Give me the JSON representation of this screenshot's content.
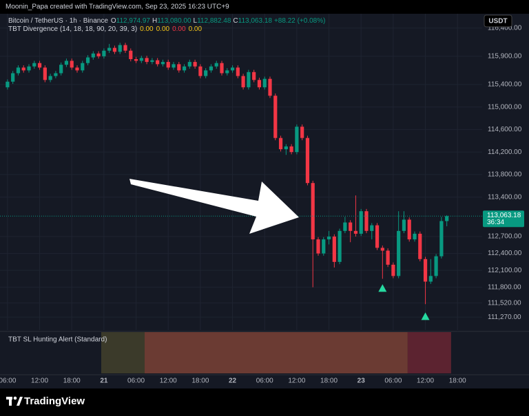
{
  "chart_data": {
    "type": "candlestick",
    "credit": "Moonin_Papa created with TradingView.com, Sep 23, 2025 16:23 UTC+9",
    "symbol": "Bitcoin / TetherUS · 1h · Binance",
    "ohlc_labels": [
      {
        "key": "O",
        "value": "112,974.97"
      },
      {
        "key": "H",
        "value": "113,080.00"
      },
      {
        "key": "L",
        "value": "112,882.48"
      },
      {
        "key": "C",
        "value": "113,063.18"
      }
    ],
    "change": "+88.22 (+0.08%)",
    "indicator": {
      "name": "TBT Divergence (14, 18, 18, 90, 20, 39, 3)",
      "values": [
        {
          "text": "0.00",
          "color": "#f5c518"
        },
        {
          "text": "0.00",
          "color": "#f5c518"
        },
        {
          "text": "0.00",
          "color": "#f23645"
        },
        {
          "text": "0.00",
          "color": "#f5c518"
        }
      ]
    },
    "currency": "USDT",
    "last_price_label": "113,063.18",
    "countdown": "36:34",
    "up_color": "#089981",
    "down_color": "#f23645",
    "x": [
      6,
      7,
      8,
      9,
      10,
      11,
      12,
      13,
      14,
      15,
      16,
      17,
      18,
      19,
      20,
      21,
      22,
      23,
      24,
      25,
      26,
      27,
      28,
      29,
      30,
      31,
      32,
      33,
      34,
      35,
      36,
      37,
      38,
      39,
      40,
      41,
      42,
      43,
      44,
      45,
      46,
      47,
      48,
      49,
      50,
      51,
      52,
      53,
      54,
      55,
      56,
      57,
      58,
      59,
      60,
      61,
      62,
      63,
      64,
      65,
      66,
      67,
      68,
      69,
      70,
      71,
      72,
      73,
      74,
      75,
      76,
      77,
      78,
      79,
      80,
      81,
      82,
      83,
      84,
      85,
      86,
      87,
      88
    ],
    "open": [
      115350,
      115450,
      115600,
      115700,
      115650,
      115720,
      115780,
      115700,
      115480,
      115550,
      115600,
      115750,
      115820,
      115700,
      115650,
      115780,
      115880,
      115950,
      115900,
      116000,
      116050,
      115980,
      116100,
      116000,
      115850,
      115820,
      115870,
      115800,
      115830,
      115760,
      115800,
      115700,
      115760,
      115650,
      115720,
      115800,
      115720,
      115550,
      115650,
      115720,
      115780,
      115600,
      115650,
      115700,
      115550,
      115350,
      115620,
      115480,
      115350,
      115500,
      115200,
      114450,
      114250,
      114300,
      114200,
      114650,
      114450,
      113650,
      112650,
      112400,
      112650,
      112700,
      112250,
      112800,
      112950,
      112800,
      112750,
      113150,
      112800,
      112900,
      112500,
      112450,
      112200,
      112000,
      112800,
      113000,
      112650,
      112750,
      112300,
      111900,
      112000,
      112350,
      112974.97
    ],
    "high": [
      115490,
      115640,
      115740,
      115740,
      115760,
      115820,
      115820,
      115740,
      115590,
      115640,
      115790,
      115860,
      115860,
      115740,
      115820,
      115920,
      115990,
      115990,
      116040,
      116120,
      116090,
      116140,
      116140,
      116040,
      115890,
      115910,
      115910,
      115870,
      115870,
      115840,
      115840,
      115800,
      115800,
      115760,
      115840,
      115840,
      115760,
      115690,
      115760,
      115820,
      115820,
      115690,
      115740,
      115740,
      115590,
      115660,
      115660,
      115520,
      115540,
      115540,
      115240,
      114490,
      114340,
      114340,
      114690,
      114690,
      114490,
      113690,
      112690,
      112690,
      112800,
      112740,
      112840,
      113050,
      112990,
      113430,
      113190,
      113190,
      112940,
      112940,
      112540,
      112490,
      112240,
      113150,
      113150,
      113040,
      112790,
      112790,
      112340,
      112300,
      112390,
      113050,
      113080
    ],
    "low": [
      115310,
      115410,
      115560,
      115610,
      115610,
      115680,
      115660,
      115440,
      115440,
      115510,
      115560,
      115710,
      115660,
      115610,
      115610,
      115740,
      115840,
      115860,
      115860,
      115960,
      115940,
      115940,
      115960,
      115810,
      115780,
      115780,
      115760,
      115760,
      115720,
      115720,
      115660,
      115660,
      115610,
      115610,
      115680,
      115680,
      115510,
      115510,
      115610,
      115680,
      115560,
      115560,
      115610,
      115510,
      115310,
      115310,
      115440,
      115310,
      115310,
      115160,
      114410,
      114210,
      114150,
      114160,
      114160,
      114410,
      113610,
      111800,
      112360,
      112360,
      112560,
      112150,
      112210,
      112760,
      112600,
      112700,
      112710,
      112760,
      112650,
      112460,
      111950,
      112160,
      111960,
      111960,
      112760,
      112610,
      112610,
      112260,
      111500,
      111860,
      111960,
      112310,
      112882.48
    ],
    "close": [
      115450,
      115600,
      115700,
      115650,
      115720,
      115780,
      115700,
      115480,
      115550,
      115600,
      115750,
      115820,
      115700,
      115650,
      115780,
      115880,
      115950,
      115900,
      116000,
      116050,
      115980,
      116100,
      116000,
      115850,
      115820,
      115870,
      115800,
      115830,
      115760,
      115800,
      115700,
      115760,
      115650,
      115720,
      115800,
      115720,
      115550,
      115650,
      115720,
      115780,
      115600,
      115650,
      115700,
      115550,
      115350,
      115620,
      115480,
      115350,
      115500,
      115200,
      114450,
      114250,
      114300,
      114200,
      114650,
      114450,
      113650,
      112650,
      112400,
      112650,
      112700,
      112250,
      112800,
      112950,
      112800,
      112750,
      113150,
      112800,
      112900,
      112500,
      112450,
      112200,
      112000,
      112800,
      113000,
      112650,
      112750,
      112300,
      111900,
      112000,
      112350,
      112974.97,
      113063.18
    ],
    "signals": {
      "color": "#26d9a0",
      "x": [
        76,
        84
      ],
      "y": [
        111780,
        111280
      ]
    },
    "xlim": [
      4.6,
      94.6
    ],
    "ylim": [
      111040,
      116680
    ],
    "xticks": [
      {
        "value": 6,
        "label": "06:00"
      },
      {
        "value": 12,
        "label": "12:00"
      },
      {
        "value": 18,
        "label": "18:00"
      },
      {
        "value": 24,
        "label": "21"
      },
      {
        "value": 30,
        "label": "06:00"
      },
      {
        "value": 36,
        "label": "12:00"
      },
      {
        "value": 42,
        "label": "18:00"
      },
      {
        "value": 48,
        "label": "22"
      },
      {
        "value": 54,
        "label": "06:00"
      },
      {
        "value": 60,
        "label": "12:00"
      },
      {
        "value": 66,
        "label": "18:00"
      },
      {
        "value": 72,
        "label": "23"
      },
      {
        "value": 78,
        "label": "06:00"
      },
      {
        "value": 84,
        "label": "12:00"
      },
      {
        "value": 90,
        "label": "18:00"
      }
    ],
    "yticks": [
      {
        "value": 116400,
        "label": "116,400.00"
      },
      {
        "value": 115900,
        "label": "115,900.00"
      },
      {
        "value": 115400,
        "label": "115,400.00"
      },
      {
        "value": 115000,
        "label": "115,000.00"
      },
      {
        "value": 114600,
        "label": "114,600.00"
      },
      {
        "value": 114200,
        "label": "114,200.00"
      },
      {
        "value": 113800,
        "label": "113,800.00"
      },
      {
        "value": 113400,
        "label": "113,400.00"
      },
      {
        "value": 112700,
        "label": "112,700.00"
      },
      {
        "value": 112400,
        "label": "112,400.00"
      },
      {
        "value": 112100,
        "label": "112,100.00"
      },
      {
        "value": 111800,
        "label": "111,800.00"
      },
      {
        "value": 111520,
        "label": "111,520.00"
      },
      {
        "value": 111270,
        "label": "111,270.00"
      }
    ],
    "grid": true,
    "lower_pane": {
      "title": "TBT SL Hunting Alert (Standard)",
      "zones": [
        {
          "start": 23.5,
          "end": 31.6,
          "color": "#3b3a2a"
        },
        {
          "start": 31.6,
          "end": 80.7,
          "color": "#6b3b33"
        },
        {
          "start": 80.7,
          "end": 88.8,
          "color": "#5c2330"
        }
      ]
    },
    "brand": "TradingView"
  }
}
